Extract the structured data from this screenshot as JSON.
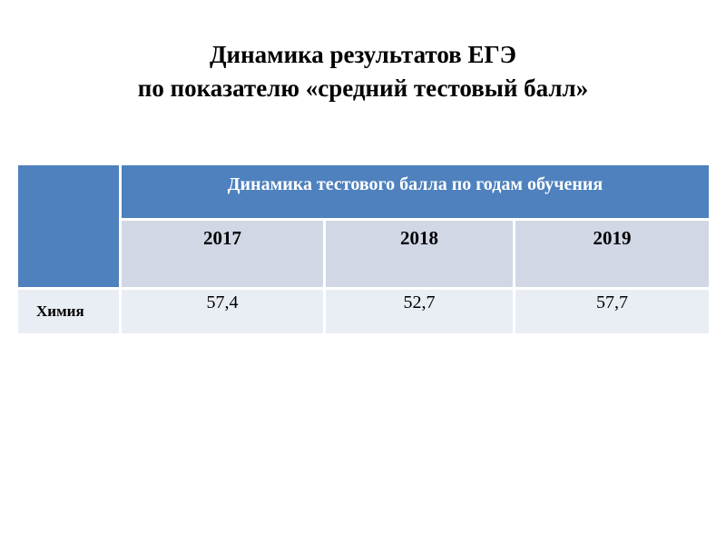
{
  "title": {
    "line1": "Динамика результатов ЕГЭ",
    "line2": "по показателю «средний тестовый балл»"
  },
  "table": {
    "header": "Динамика тестового балла по годам обучения",
    "years": [
      "2017",
      "2018",
      "2019"
    ],
    "rows": [
      {
        "subject": "Химия",
        "values": [
          "57,4",
          "52,7",
          "57,7"
        ]
      }
    ],
    "colors": {
      "header_bg": "#4E81BD",
      "year_band_bg": "#D1D7E5",
      "data_band_bg": "#E9EDF4",
      "header_text": "#FFFFFF",
      "body_text": "#000000"
    }
  }
}
